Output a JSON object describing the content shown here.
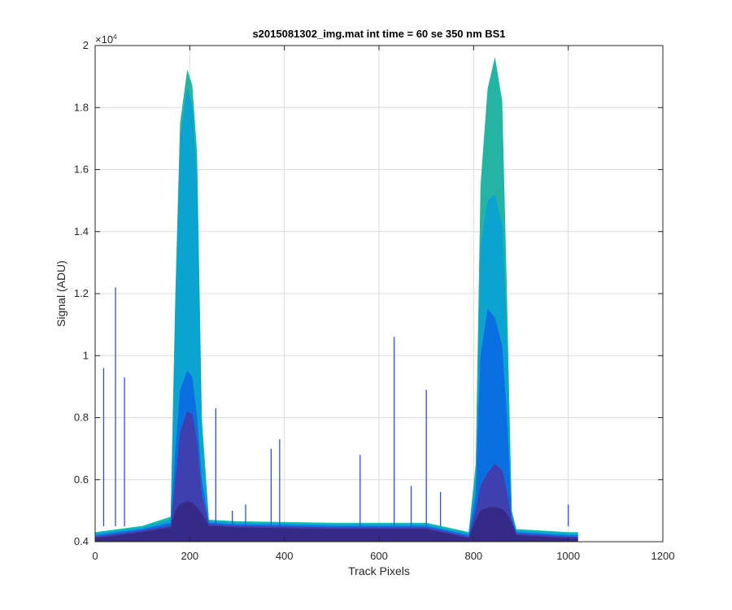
{
  "chart_data": {
    "type": "area",
    "title": "s2015081302_img.mat int time = 60 se  350 nm BS1",
    "xlabel": "Track Pixels",
    "ylabel": "Signal (ADU)",
    "xlim": [
      0,
      1200
    ],
    "ylim": [
      4000,
      20000
    ],
    "y_exponent_label": "×10",
    "y_exponent_power": "4",
    "xticks": [
      0,
      200,
      400,
      600,
      800,
      1000,
      1200
    ],
    "xtick_labels": [
      "0",
      "200",
      "400",
      "600",
      "800",
      "1000",
      "1200"
    ],
    "yticks": [
      4000,
      6000,
      8000,
      10000,
      12000,
      14000,
      16000,
      18000,
      20000
    ],
    "ytick_labels": [
      "0.4",
      "0.6",
      "0.8",
      "1",
      "1.2",
      "1.4",
      "1.6",
      "1.8",
      "2"
    ],
    "grid": true,
    "series": [
      {
        "color": "#25b3a3",
        "x": [
          0,
          100,
          160,
          170,
          180,
          195,
          205,
          215,
          225,
          240,
          300,
          500,
          700,
          790,
          805,
          815,
          830,
          845,
          860,
          870,
          880,
          890,
          1000,
          1020
        ],
        "y": [
          4300,
          4500,
          4800,
          12000,
          17500,
          19200,
          18700,
          16500,
          8000,
          4700,
          4650,
          4600,
          4600,
          4300,
          6500,
          15500,
          18600,
          19600,
          18200,
          12000,
          5000,
          4400,
          4300,
          4300
        ]
      },
      {
        "color": "#0ba3cf",
        "x": [
          0,
          100,
          160,
          170,
          180,
          195,
          205,
          215,
          225,
          240,
          300,
          500,
          700,
          790,
          805,
          815,
          830,
          845,
          860,
          870,
          880,
          890,
          1000,
          1020
        ],
        "y": [
          4250,
          4450,
          4700,
          11500,
          17000,
          18600,
          18000,
          15500,
          7500,
          4650,
          4600,
          4550,
          4550,
          4250,
          6000,
          13500,
          15000,
          15200,
          14200,
          10500,
          4900,
          4350,
          4250,
          4250
        ]
      },
      {
        "color": "#0a6fe0",
        "x": [
          0,
          100,
          160,
          170,
          180,
          195,
          205,
          215,
          225,
          240,
          300,
          500,
          700,
          790,
          805,
          815,
          830,
          845,
          860,
          870,
          880,
          890,
          1000,
          1020
        ],
        "y": [
          4200,
          4400,
          4600,
          7000,
          8900,
          9500,
          9300,
          8000,
          6000,
          4600,
          4550,
          4500,
          4500,
          4200,
          5500,
          10000,
          11500,
          11200,
          10300,
          8000,
          4800,
          4300,
          4200,
          4200
        ]
      },
      {
        "color": "#3f3faf",
        "x": [
          0,
          100,
          160,
          170,
          180,
          195,
          205,
          215,
          225,
          240,
          300,
          500,
          700,
          790,
          805,
          815,
          830,
          845,
          860,
          870,
          880,
          890,
          1000,
          1020
        ],
        "y": [
          4150,
          4350,
          4500,
          6000,
          7500,
          8200,
          8100,
          7200,
          5500,
          4550,
          4500,
          4450,
          4450,
          4150,
          5000,
          5800,
          6200,
          6500,
          6300,
          5600,
          4700,
          4250,
          4150,
          4150
        ]
      },
      {
        "color": "#352a87",
        "x": [
          0,
          100,
          160,
          170,
          180,
          195,
          205,
          215,
          225,
          240,
          300,
          500,
          700,
          790,
          805,
          815,
          830,
          845,
          860,
          870,
          880,
          890,
          1000,
          1020
        ],
        "y": [
          4100,
          4300,
          4450,
          5000,
          5200,
          5300,
          5250,
          5100,
          4900,
          4500,
          4450,
          4400,
          4400,
          4100,
          4700,
          5000,
          5100,
          5100,
          5050,
          4900,
          4600,
          4200,
          4100,
          4100
        ]
      }
    ],
    "spikes": [
      {
        "x": 18,
        "y": 9600
      },
      {
        "x": 43,
        "y": 12200
      },
      {
        "x": 62,
        "y": 9300
      },
      {
        "x": 255,
        "y": 8300
      },
      {
        "x": 290,
        "y": 5000
      },
      {
        "x": 318,
        "y": 5200
      },
      {
        "x": 372,
        "y": 7000
      },
      {
        "x": 390,
        "y": 7300
      },
      {
        "x": 560,
        "y": 6800
      },
      {
        "x": 632,
        "y": 10600
      },
      {
        "x": 668,
        "y": 5800
      },
      {
        "x": 700,
        "y": 8900
      },
      {
        "x": 730,
        "y": 5600
      },
      {
        "x": 1000,
        "y": 5200
      }
    ]
  }
}
